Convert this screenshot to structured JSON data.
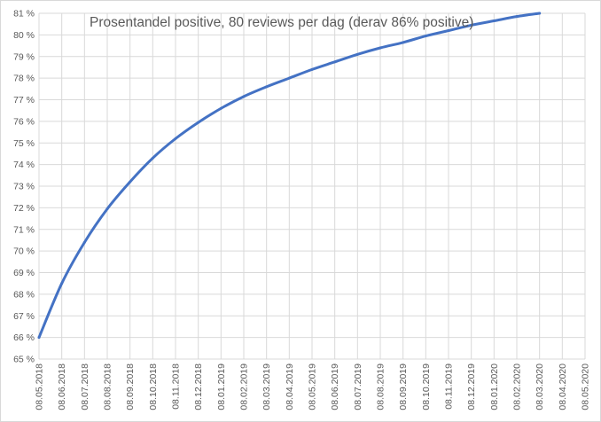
{
  "chart_data": {
    "type": "line",
    "title": "Prosentandel positive, 80 reviews per dag (derav 86% positive)",
    "xlabel": "",
    "ylabel": "",
    "x_tick_labels": [
      "08.05.2018",
      "08.06.2018",
      "08.07.2018",
      "08.08.2018",
      "08.09.2018",
      "08.10.2018",
      "08.11.2018",
      "08.12.2018",
      "08.01.2019",
      "08.02.2019",
      "08.03.2019",
      "08.04.2019",
      "08.05.2019",
      "08.06.2019",
      "08.07.2019",
      "08.08.2019",
      "08.09.2019",
      "08.10.2019",
      "08.11.2019",
      "08.12.2019",
      "08.01.2020",
      "08.02.2020",
      "08.03.2020",
      "08.04.2020",
      "08.05.2020"
    ],
    "y_tick_labels": [
      "65 %",
      "66 %",
      "67 %",
      "68 %",
      "69 %",
      "70 %",
      "71 %",
      "72 %",
      "73 %",
      "74 %",
      "75 %",
      "76 %",
      "77 %",
      "78 %",
      "79 %",
      "80 %",
      "81 %"
    ],
    "ylim": [
      65,
      81
    ],
    "grid": true,
    "legend": false,
    "line_color": "#4472c4",
    "grid_color": "#d9d9d9",
    "series": [
      {
        "x": [
          "08.05.2018",
          "08.06.2018",
          "08.07.2018",
          "08.08.2018",
          "08.09.2018",
          "08.10.2018",
          "08.11.2018",
          "08.12.2018",
          "08.01.2019",
          "08.02.2019",
          "08.03.2019",
          "08.04.2019",
          "08.05.2019",
          "08.06.2019",
          "08.07.2019",
          "08.08.2019",
          "08.09.2019",
          "08.10.2019",
          "08.11.2019",
          "08.12.2019",
          "08.01.2020",
          "08.02.2020",
          "08.03.2020"
        ],
        "values": [
          66.0,
          68.5,
          70.4,
          71.95,
          73.2,
          74.3,
          75.2,
          75.95,
          76.6,
          77.15,
          77.6,
          78.0,
          78.4,
          78.75,
          79.1,
          79.4,
          79.65,
          79.95,
          80.2,
          80.45,
          80.65,
          80.85,
          81.0
        ]
      }
    ]
  }
}
